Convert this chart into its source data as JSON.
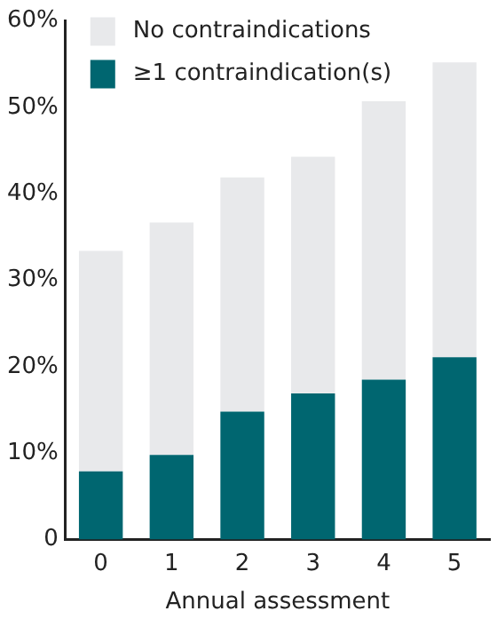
{
  "chart_data": {
    "type": "bar",
    "stacked": true,
    "xlabel": "Annual assessment",
    "categories": [
      "0",
      "1",
      "2",
      "3",
      "4",
      "5"
    ],
    "series": [
      {
        "name": "≥1 contraindication(s)",
        "color": "#006670",
        "values": [
          7.9,
          9.8,
          14.8,
          16.9,
          18.5,
          21.1
        ]
      },
      {
        "name": "No contraindications",
        "color": "#e8e9eb",
        "values": [
          25.5,
          26.9,
          27.1,
          27.4,
          32.2,
          34.1
        ]
      }
    ],
    "ylim": [
      0,
      60
    ],
    "yticks": [
      {
        "value": 0,
        "label": "0"
      },
      {
        "value": 10,
        "label": "10%"
      },
      {
        "value": 20,
        "label": "20%"
      },
      {
        "value": 30,
        "label": "30%"
      },
      {
        "value": 40,
        "label": "40%"
      },
      {
        "value": 50,
        "label": "50%"
      },
      {
        "value": 60,
        "label": "60%"
      }
    ],
    "grid": false,
    "legend": "top left"
  }
}
